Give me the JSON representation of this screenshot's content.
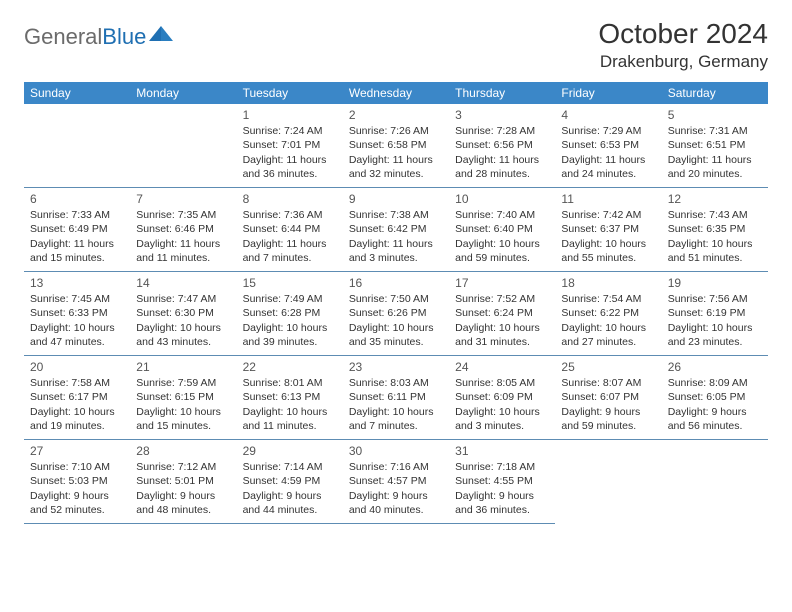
{
  "logo": {
    "text_gray": "General",
    "text_blue": "Blue",
    "shape_color": "#1f6fb2"
  },
  "title": "October 2024",
  "location": "Drakenburg, Germany",
  "header_bg": "#3b87c8",
  "header_text_color": "#ffffff",
  "border_color": "#5d8cb3",
  "weekdays": [
    "Sunday",
    "Monday",
    "Tuesday",
    "Wednesday",
    "Thursday",
    "Friday",
    "Saturday"
  ],
  "weeks": [
    [
      null,
      null,
      {
        "n": "1",
        "sr": "Sunrise: 7:24 AM",
        "ss": "Sunset: 7:01 PM",
        "d1": "Daylight: 11 hours",
        "d2": "and 36 minutes."
      },
      {
        "n": "2",
        "sr": "Sunrise: 7:26 AM",
        "ss": "Sunset: 6:58 PM",
        "d1": "Daylight: 11 hours",
        "d2": "and 32 minutes."
      },
      {
        "n": "3",
        "sr": "Sunrise: 7:28 AM",
        "ss": "Sunset: 6:56 PM",
        "d1": "Daylight: 11 hours",
        "d2": "and 28 minutes."
      },
      {
        "n": "4",
        "sr": "Sunrise: 7:29 AM",
        "ss": "Sunset: 6:53 PM",
        "d1": "Daylight: 11 hours",
        "d2": "and 24 minutes."
      },
      {
        "n": "5",
        "sr": "Sunrise: 7:31 AM",
        "ss": "Sunset: 6:51 PM",
        "d1": "Daylight: 11 hours",
        "d2": "and 20 minutes."
      }
    ],
    [
      {
        "n": "6",
        "sr": "Sunrise: 7:33 AM",
        "ss": "Sunset: 6:49 PM",
        "d1": "Daylight: 11 hours",
        "d2": "and 15 minutes."
      },
      {
        "n": "7",
        "sr": "Sunrise: 7:35 AM",
        "ss": "Sunset: 6:46 PM",
        "d1": "Daylight: 11 hours",
        "d2": "and 11 minutes."
      },
      {
        "n": "8",
        "sr": "Sunrise: 7:36 AM",
        "ss": "Sunset: 6:44 PM",
        "d1": "Daylight: 11 hours",
        "d2": "and 7 minutes."
      },
      {
        "n": "9",
        "sr": "Sunrise: 7:38 AM",
        "ss": "Sunset: 6:42 PM",
        "d1": "Daylight: 11 hours",
        "d2": "and 3 minutes."
      },
      {
        "n": "10",
        "sr": "Sunrise: 7:40 AM",
        "ss": "Sunset: 6:40 PM",
        "d1": "Daylight: 10 hours",
        "d2": "and 59 minutes."
      },
      {
        "n": "11",
        "sr": "Sunrise: 7:42 AM",
        "ss": "Sunset: 6:37 PM",
        "d1": "Daylight: 10 hours",
        "d2": "and 55 minutes."
      },
      {
        "n": "12",
        "sr": "Sunrise: 7:43 AM",
        "ss": "Sunset: 6:35 PM",
        "d1": "Daylight: 10 hours",
        "d2": "and 51 minutes."
      }
    ],
    [
      {
        "n": "13",
        "sr": "Sunrise: 7:45 AM",
        "ss": "Sunset: 6:33 PM",
        "d1": "Daylight: 10 hours",
        "d2": "and 47 minutes."
      },
      {
        "n": "14",
        "sr": "Sunrise: 7:47 AM",
        "ss": "Sunset: 6:30 PM",
        "d1": "Daylight: 10 hours",
        "d2": "and 43 minutes."
      },
      {
        "n": "15",
        "sr": "Sunrise: 7:49 AM",
        "ss": "Sunset: 6:28 PM",
        "d1": "Daylight: 10 hours",
        "d2": "and 39 minutes."
      },
      {
        "n": "16",
        "sr": "Sunrise: 7:50 AM",
        "ss": "Sunset: 6:26 PM",
        "d1": "Daylight: 10 hours",
        "d2": "and 35 minutes."
      },
      {
        "n": "17",
        "sr": "Sunrise: 7:52 AM",
        "ss": "Sunset: 6:24 PM",
        "d1": "Daylight: 10 hours",
        "d2": "and 31 minutes."
      },
      {
        "n": "18",
        "sr": "Sunrise: 7:54 AM",
        "ss": "Sunset: 6:22 PM",
        "d1": "Daylight: 10 hours",
        "d2": "and 27 minutes."
      },
      {
        "n": "19",
        "sr": "Sunrise: 7:56 AM",
        "ss": "Sunset: 6:19 PM",
        "d1": "Daylight: 10 hours",
        "d2": "and 23 minutes."
      }
    ],
    [
      {
        "n": "20",
        "sr": "Sunrise: 7:58 AM",
        "ss": "Sunset: 6:17 PM",
        "d1": "Daylight: 10 hours",
        "d2": "and 19 minutes."
      },
      {
        "n": "21",
        "sr": "Sunrise: 7:59 AM",
        "ss": "Sunset: 6:15 PM",
        "d1": "Daylight: 10 hours",
        "d2": "and 15 minutes."
      },
      {
        "n": "22",
        "sr": "Sunrise: 8:01 AM",
        "ss": "Sunset: 6:13 PM",
        "d1": "Daylight: 10 hours",
        "d2": "and 11 minutes."
      },
      {
        "n": "23",
        "sr": "Sunrise: 8:03 AM",
        "ss": "Sunset: 6:11 PM",
        "d1": "Daylight: 10 hours",
        "d2": "and 7 minutes."
      },
      {
        "n": "24",
        "sr": "Sunrise: 8:05 AM",
        "ss": "Sunset: 6:09 PM",
        "d1": "Daylight: 10 hours",
        "d2": "and 3 minutes."
      },
      {
        "n": "25",
        "sr": "Sunrise: 8:07 AM",
        "ss": "Sunset: 6:07 PM",
        "d1": "Daylight: 9 hours",
        "d2": "and 59 minutes."
      },
      {
        "n": "26",
        "sr": "Sunrise: 8:09 AM",
        "ss": "Sunset: 6:05 PM",
        "d1": "Daylight: 9 hours",
        "d2": "and 56 minutes."
      }
    ],
    [
      {
        "n": "27",
        "sr": "Sunrise: 7:10 AM",
        "ss": "Sunset: 5:03 PM",
        "d1": "Daylight: 9 hours",
        "d2": "and 52 minutes."
      },
      {
        "n": "28",
        "sr": "Sunrise: 7:12 AM",
        "ss": "Sunset: 5:01 PM",
        "d1": "Daylight: 9 hours",
        "d2": "and 48 minutes."
      },
      {
        "n": "29",
        "sr": "Sunrise: 7:14 AM",
        "ss": "Sunset: 4:59 PM",
        "d1": "Daylight: 9 hours",
        "d2": "and 44 minutes."
      },
      {
        "n": "30",
        "sr": "Sunrise: 7:16 AM",
        "ss": "Sunset: 4:57 PM",
        "d1": "Daylight: 9 hours",
        "d2": "and 40 minutes."
      },
      {
        "n": "31",
        "sr": "Sunrise: 7:18 AM",
        "ss": "Sunset: 4:55 PM",
        "d1": "Daylight: 9 hours",
        "d2": "and 36 minutes."
      },
      null,
      null
    ]
  ]
}
